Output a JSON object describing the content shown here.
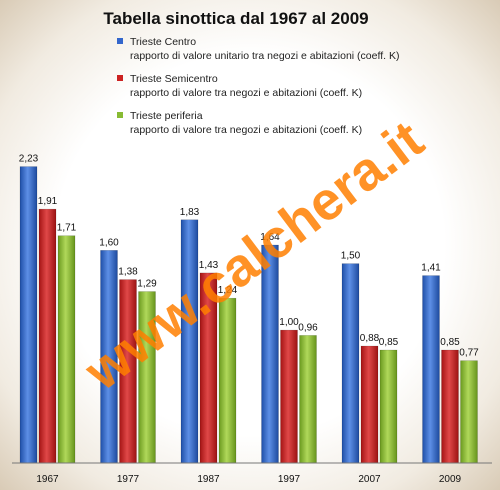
{
  "chart_data": {
    "type": "bar",
    "title": "Tabella sinottica  dal 1967 al 2009",
    "categories": [
      "1967",
      "1977",
      "1987",
      "1997",
      "2007",
      "2009"
    ],
    "series": [
      {
        "name": "Trieste Centro",
        "description": "rapporto di valore unitario   tra negozi e abitazioni (coeff. K)",
        "color": "#3366cc",
        "values": [
          2.23,
          1.6,
          1.83,
          1.64,
          1.5,
          1.41
        ],
        "labels": [
          "2,23",
          "1,60",
          "1,83",
          "1,64",
          "1,50",
          "1,41"
        ]
      },
      {
        "name": "Trieste Semicentro",
        "description": "rapporto di valore  tra negozi e abitazioni (coeff. K)",
        "color": "#cc2222",
        "values": [
          1.91,
          1.38,
          1.43,
          1.0,
          0.88,
          0.85
        ],
        "labels": [
          "1,91",
          "1,38",
          "1,43",
          "1,00",
          "0,88",
          "0,85"
        ]
      },
      {
        "name": "Trieste periferia",
        "description": "rapporto di valore  tra negozi e abitazioni (coeff. K)",
        "color": "#88bb33",
        "values": [
          1.71,
          1.29,
          1.24,
          0.96,
          0.85,
          0.77
        ],
        "labels": [
          "1,71",
          "1,29",
          "1,24",
          "0,96",
          "0,85",
          "0,77"
        ]
      }
    ],
    "ylim": [
      0,
      2.4
    ],
    "grid": false,
    "legend": "top"
  },
  "watermark": "www.calchera.it"
}
